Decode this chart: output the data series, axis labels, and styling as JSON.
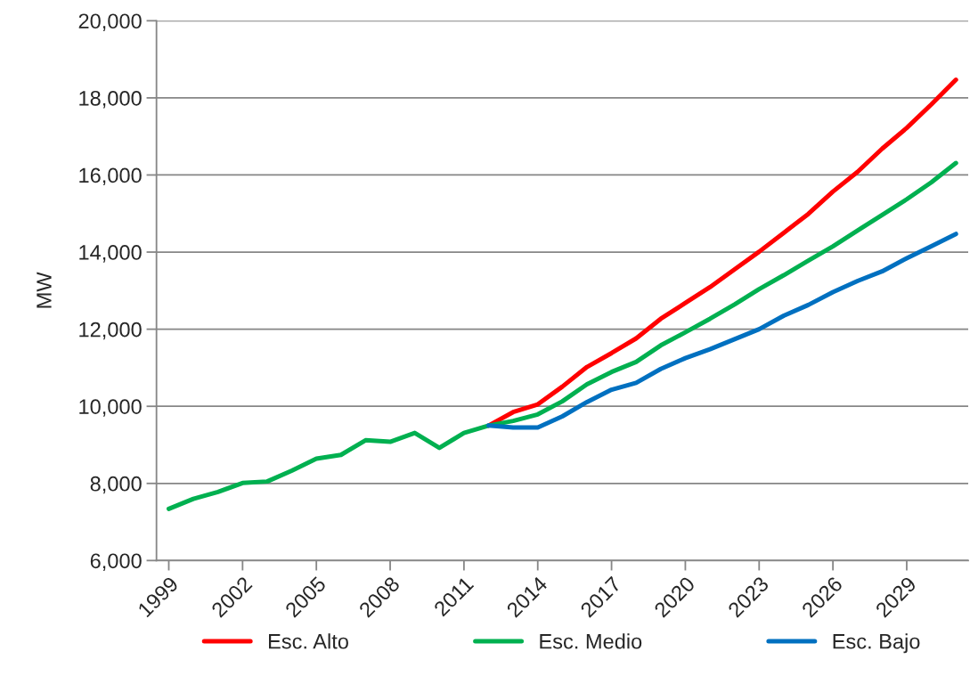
{
  "chart_data": {
    "type": "line",
    "ylabel": "MW",
    "x": [
      1999,
      2000,
      2001,
      2002,
      2003,
      2004,
      2005,
      2006,
      2007,
      2008,
      2009,
      2010,
      2011,
      2012,
      2013,
      2014,
      2015,
      2016,
      2017,
      2018,
      2019,
      2020,
      2021,
      2022,
      2023,
      2024,
      2025,
      2026,
      2027,
      2028,
      2029,
      2030,
      2031
    ],
    "series": [
      {
        "name": "Esc. Alto",
        "color": "#ff0000",
        "values": [
          null,
          null,
          null,
          null,
          null,
          null,
          null,
          null,
          null,
          null,
          null,
          null,
          null,
          9500,
          9850,
          10050,
          10510,
          11020,
          11380,
          11760,
          12270,
          12680,
          13090,
          13550,
          14010,
          14500,
          14990,
          15570,
          16080,
          16680,
          17220,
          17830,
          18470
        ]
      },
      {
        "name": "Esc. Medio",
        "color": "#00b050",
        "values": [
          7340,
          7600,
          7780,
          8010,
          8050,
          8330,
          8640,
          8740,
          9120,
          9080,
          9310,
          8920,
          9310,
          9500,
          9620,
          9790,
          10130,
          10570,
          10890,
          11150,
          11580,
          11920,
          12270,
          12640,
          13040,
          13400,
          13780,
          14150,
          14560,
          14960,
          15370,
          15810,
          16310
        ]
      },
      {
        "name": "Esc. Bajo",
        "color": "#0070c0",
        "values": [
          null,
          null,
          null,
          null,
          null,
          null,
          null,
          null,
          null,
          null,
          null,
          null,
          null,
          9500,
          9450,
          9450,
          9740,
          10110,
          10430,
          10610,
          10970,
          11250,
          11480,
          11740,
          12000,
          12350,
          12630,
          12960,
          13250,
          13500,
          13840,
          14150,
          14470
        ]
      }
    ],
    "xlim": [
      1998.5,
      2031.5
    ],
    "xticks": [
      1999,
      2002,
      2005,
      2008,
      2011,
      2014,
      2017,
      2020,
      2023,
      2026,
      2029
    ],
    "ylim": [
      6000,
      20000
    ],
    "yticks": [
      {
        "value": 6000,
        "label": "6,000"
      },
      {
        "value": 8000,
        "label": "8,000"
      },
      {
        "value": 10000,
        "label": "10,000"
      },
      {
        "value": 12000,
        "label": "12,000"
      },
      {
        "value": 14000,
        "label": "14,000"
      },
      {
        "value": 16000,
        "label": "16,000"
      },
      {
        "value": 18000,
        "label": "18,000"
      },
      {
        "value": 20000,
        "label": "20,000"
      }
    ],
    "grid": "y",
    "legend": "bottom",
    "marker": "none",
    "line_style": "solid"
  }
}
